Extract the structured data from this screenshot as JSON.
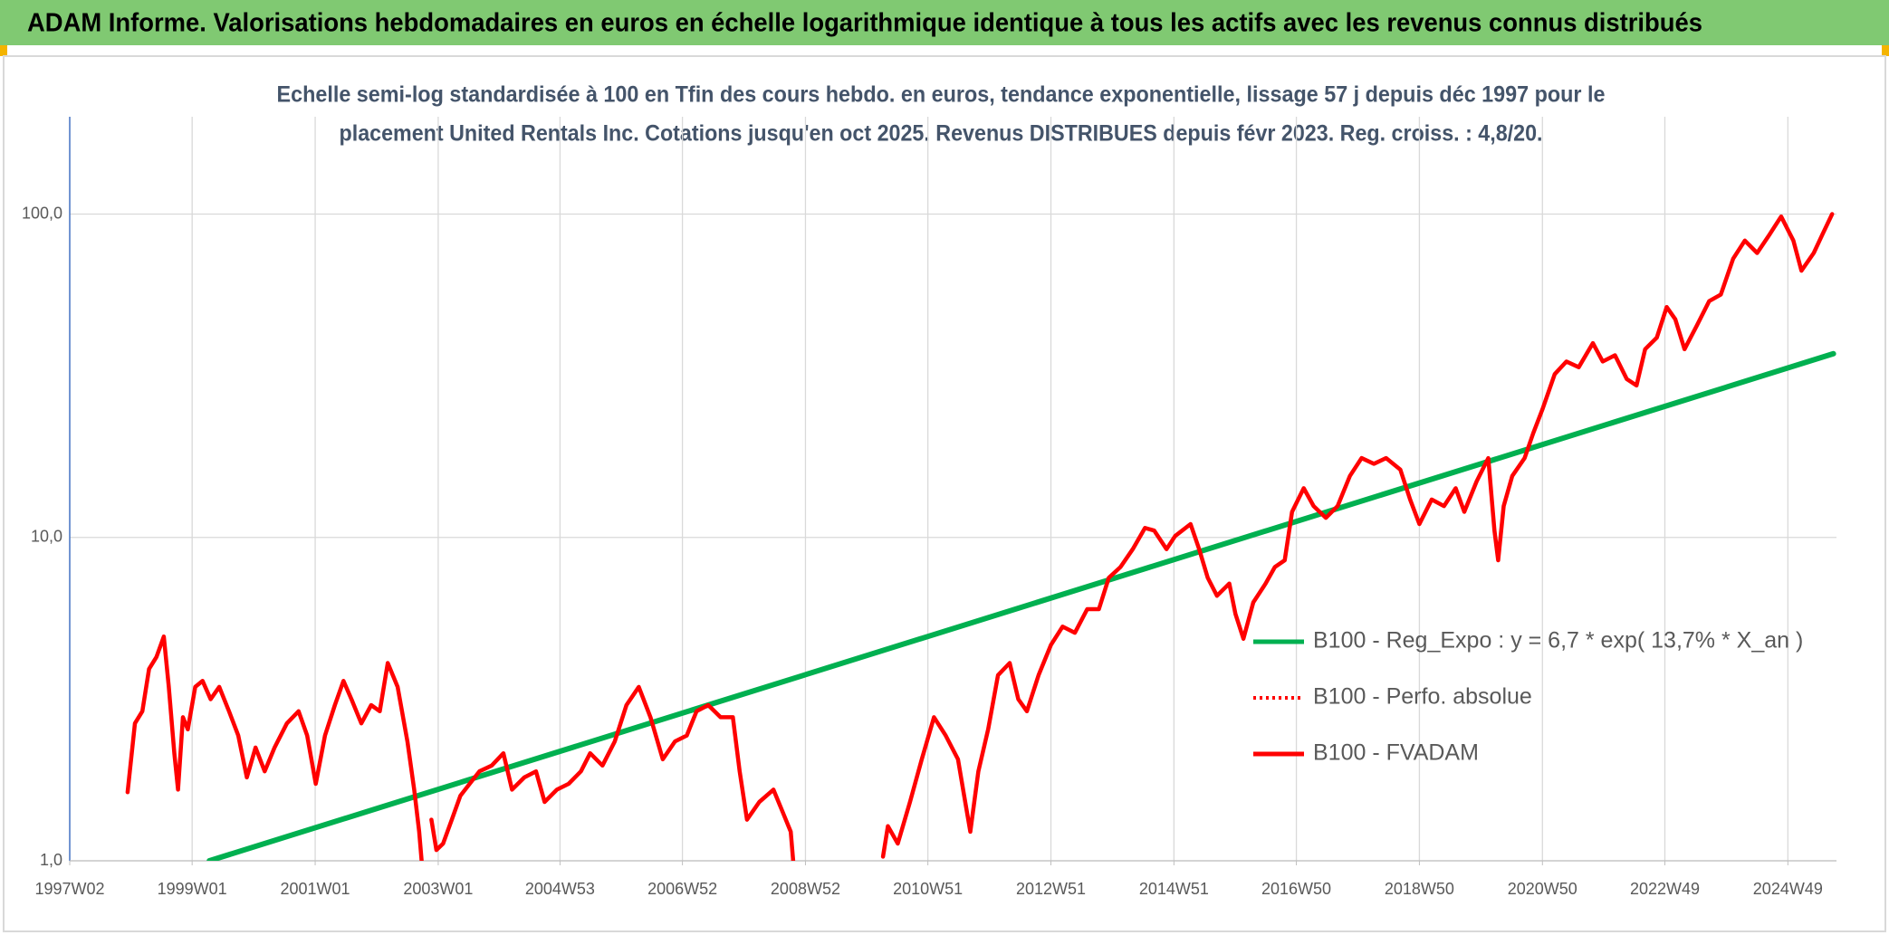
{
  "header": {
    "title": "ADAM Informe. Valorisations hebdomadaires en euros en échelle logarithmique identique à tous les actifs avec les revenus connus distribués"
  },
  "chart_data": {
    "type": "line",
    "title": [
      "Echelle semi-log standardisée à 100 en Tfin des cours hebdo. en euros, tendance exponentielle, lissage 57 j depuis déc 1997 pour le",
      "placement United Rentals Inc. Cotations jusqu'en oct 2025. Revenus DISTRIBUES depuis févr 2023. Reg. croiss. : 4,8/20."
    ],
    "log_scale": true,
    "grid": true,
    "xlim": [
      1997.03,
      2025.75
    ],
    "ylim": [
      1,
      200
    ],
    "xticks": [
      {
        "value": 1997.03,
        "label": "1997W02"
      },
      {
        "value": 1999.02,
        "label": "1999W01"
      },
      {
        "value": 2001.02,
        "label": "2001W01"
      },
      {
        "value": 2003.02,
        "label": "2003W01"
      },
      {
        "value": 2005.0,
        "label": "2004W53"
      },
      {
        "value": 2006.99,
        "label": "2006W52"
      },
      {
        "value": 2008.99,
        "label": "2008W52"
      },
      {
        "value": 2010.98,
        "label": "2010W51"
      },
      {
        "value": 2012.98,
        "label": "2012W51"
      },
      {
        "value": 2014.98,
        "label": "2014W51"
      },
      {
        "value": 2016.97,
        "label": "2016W50"
      },
      {
        "value": 2018.97,
        "label": "2018W50"
      },
      {
        "value": 2020.97,
        "label": "2020W50"
      },
      {
        "value": 2022.96,
        "label": "2022W49"
      },
      {
        "value": 2024.96,
        "label": "2024W49"
      }
    ],
    "yticks": [
      {
        "value": 1,
        "label": "1,0"
      },
      {
        "value": 10,
        "label": "10,0"
      },
      {
        "value": 100,
        "label": "100,0"
      }
    ],
    "series": [
      {
        "name": "B100 - Reg_Expo : y = 6,7 * exp( 13,7% *  X_an )",
        "color": "#00b050",
        "dash": "solid",
        "x": [
          1999.3,
          2025.7
        ],
        "values": [
          1.0,
          37
        ]
      },
      {
        "name": "B100 - Perfo. absolue",
        "color": "#ff0000",
        "dash": "dotted",
        "x": [],
        "values": []
      },
      {
        "name": "B100 - FVADAM",
        "color": "#ff0000",
        "dash": "solid",
        "x": [
          1997.97,
          1998.09,
          1998.21,
          1998.32,
          1998.44,
          1998.56,
          1998.64,
          1998.73,
          1998.79,
          1998.87,
          1998.95,
          1999.07,
          1999.19,
          1999.32,
          1999.46,
          1999.62,
          1999.77,
          1999.91,
          2000.05,
          2000.2,
          2000.36,
          2000.56,
          2000.75,
          2000.89,
          2001.03,
          2001.18,
          2001.34,
          2001.48,
          2001.61,
          2001.77,
          2001.93,
          2002.07,
          2002.2,
          2002.36,
          2002.52,
          2002.63,
          2002.71,
          2002.75,
          2002.83,
          2002.91,
          2002.99,
          2003.1,
          2003.24,
          2003.38,
          2003.53,
          2003.69,
          2003.89,
          2004.08,
          2004.22,
          2004.42,
          2004.61,
          2004.75,
          2004.95,
          2005.14,
          2005.34,
          2005.49,
          2005.69,
          2005.89,
          2006.08,
          2006.28,
          2006.47,
          2006.67,
          2006.87,
          2007.06,
          2007.22,
          2007.41,
          2007.61,
          2007.81,
          2007.92,
          2008.04,
          2008.24,
          2008.47,
          2008.63,
          2008.75,
          2008.79,
          2009.5,
          2010.25,
          2010.33,
          2010.49,
          2010.69,
          2010.88,
          2011.08,
          2011.27,
          2011.47,
          2011.57,
          2011.67,
          2011.8,
          2011.96,
          2012.12,
          2012.31,
          2012.45,
          2012.59,
          2012.78,
          2012.98,
          2013.17,
          2013.37,
          2013.57,
          2013.76,
          2013.92,
          2014.11,
          2014.31,
          2014.51,
          2014.66,
          2014.86,
          2015.0,
          2015.25,
          2015.39,
          2015.53,
          2015.68,
          2015.88,
          2015.98,
          2016.11,
          2016.27,
          2016.47,
          2016.62,
          2016.78,
          2016.9,
          2017.09,
          2017.25,
          2017.45,
          2017.64,
          2017.84,
          2018.03,
          2018.23,
          2018.43,
          2018.66,
          2018.82,
          2018.97,
          2019.17,
          2019.37,
          2019.56,
          2019.7,
          2019.9,
          2020.09,
          2020.19,
          2020.25,
          2020.34,
          2020.48,
          2020.68,
          2020.82,
          2020.97,
          2021.17,
          2021.36,
          2021.56,
          2021.79,
          2021.95,
          2022.15,
          2022.34,
          2022.5,
          2022.64,
          2022.83,
          2022.99,
          2023.13,
          2023.28,
          2023.48,
          2023.68,
          2023.87,
          2024.07,
          2024.26,
          2024.46,
          2024.66,
          2024.85,
          2025.05,
          2025.18,
          2025.38,
          2025.52,
          2025.68
        ],
        "values": [
          1.63,
          2.66,
          2.9,
          3.92,
          4.27,
          4.94,
          3.45,
          2.15,
          1.66,
          2.78,
          2.55,
          3.45,
          3.6,
          3.16,
          3.45,
          2.9,
          2.44,
          1.81,
          2.24,
          1.89,
          2.24,
          2.66,
          2.9,
          2.44,
          1.73,
          2.44,
          3.03,
          3.6,
          3.16,
          2.66,
          3.03,
          2.9,
          4.09,
          3.45,
          2.34,
          1.66,
          1.23,
          1.0,
          null,
          1.34,
          1.08,
          1.13,
          1.34,
          1.59,
          1.73,
          1.89,
          1.97,
          2.15,
          1.66,
          1.81,
          1.89,
          1.52,
          1.66,
          1.73,
          1.89,
          2.15,
          1.97,
          2.34,
          3.03,
          3.45,
          2.78,
          2.06,
          2.34,
          2.44,
          2.9,
          3.03,
          2.78,
          2.78,
          1.89,
          1.34,
          1.52,
          1.66,
          1.4,
          1.23,
          1.0,
          null,
          1.03,
          1.28,
          1.13,
          1.52,
          2.06,
          2.78,
          2.44,
          2.06,
          1.59,
          1.23,
          1.89,
          2.55,
          3.75,
          4.09,
          3.16,
          2.9,
          3.75,
          4.65,
          5.3,
          5.07,
          6.0,
          6.0,
          7.5,
          8.1,
          9.2,
          10.7,
          10.5,
          9.2,
          10.1,
          11.0,
          9.2,
          7.5,
          6.6,
          7.2,
          5.8,
          4.86,
          6.3,
          7.2,
          8.1,
          8.5,
          12.0,
          14.2,
          12.5,
          11.5,
          12.5,
          15.5,
          17.6,
          16.9,
          17.6,
          16.2,
          13.1,
          11.0,
          13.1,
          12.5,
          14.2,
          12.0,
          14.9,
          17.6,
          10.5,
          8.5,
          12.5,
          15.5,
          17.6,
          21,
          24.9,
          32,
          35,
          33.6,
          39.9,
          35,
          36.6,
          30.9,
          29.5,
          38.2,
          41.5,
          51.6,
          47.3,
          38.2,
          45.2,
          53.8,
          56.4,
          72.8,
          82.8,
          75.8,
          86.4,
          98.3,
          82.8,
          66.8,
          75.8,
          86.4,
          100.0
        ]
      }
    ]
  }
}
